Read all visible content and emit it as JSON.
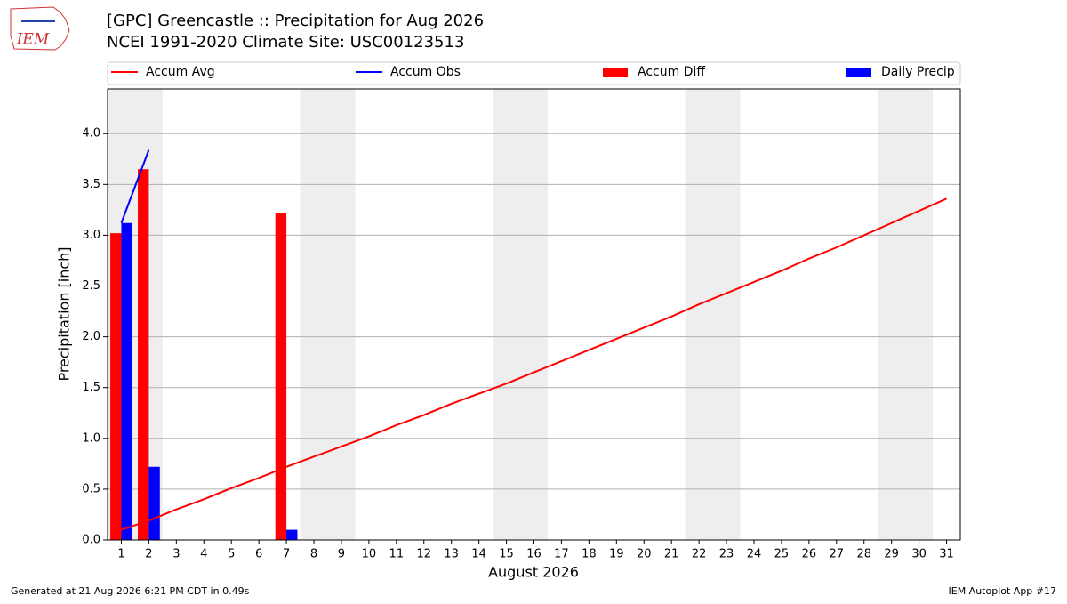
{
  "logo_text": "IEM",
  "footer_left": "Generated at 21 Aug 2026 6:21 PM CDT in 0.49s",
  "footer_right": "IEM Autoplot App #17",
  "chart_data": {
    "type": "bar",
    "title": "[GPC] Greencastle :: Precipitation for Aug 2026",
    "subtitle": "NCEI 1991-2020 Climate Site: USC00123513",
    "x_label": "August 2026",
    "y_label": "Precipitation [inch]",
    "x": [
      1,
      2,
      3,
      4,
      5,
      6,
      7,
      8,
      9,
      10,
      11,
      12,
      13,
      14,
      15,
      16,
      17,
      18,
      19,
      20,
      21,
      22,
      23,
      24,
      25,
      26,
      27,
      28,
      29,
      30,
      31
    ],
    "xlim": [
      0.5,
      31.5
    ],
    "xticks": [
      1,
      2,
      3,
      4,
      5,
      6,
      7,
      8,
      9,
      10,
      11,
      12,
      13,
      14,
      15,
      16,
      17,
      18,
      19,
      20,
      21,
      22,
      23,
      24,
      25,
      26,
      27,
      28,
      29,
      30,
      31
    ],
    "ylim": [
      0,
      4.44
    ],
    "yticks": [
      {
        "value": 0,
        "label": "0.0"
      },
      {
        "value": 0.5,
        "label": "0.5"
      },
      {
        "value": 1,
        "label": "1.0"
      },
      {
        "value": 1.5,
        "label": "1.5"
      },
      {
        "value": 2,
        "label": "2.0"
      },
      {
        "value": 2.5,
        "label": "2.5"
      },
      {
        "value": 3,
        "label": "3.0"
      },
      {
        "value": 3.5,
        "label": "3.5"
      },
      {
        "value": 4,
        "label": "4.0"
      }
    ],
    "grid": true,
    "shaded_spans": [
      [
        0.5,
        2.5
      ],
      [
        7.5,
        9.5
      ],
      [
        14.5,
        16.5
      ],
      [
        21.5,
        23.5
      ],
      [
        28.5,
        30.5
      ]
    ],
    "shade_color": "#eeeeee",
    "series": [
      {
        "name": "Accum Avg",
        "type": "line",
        "color": "#ff0000",
        "values": [
          0.1,
          0.19,
          0.3,
          0.4,
          0.51,
          0.61,
          0.72,
          0.82,
          0.92,
          1.02,
          1.13,
          1.23,
          1.34,
          1.44,
          1.54,
          1.65,
          1.76,
          1.87,
          1.98,
          2.09,
          2.2,
          2.32,
          2.43,
          2.54,
          2.65,
          2.77,
          2.88,
          3.0,
          3.12,
          3.24,
          3.36
        ]
      },
      {
        "name": "Accum Obs",
        "type": "line",
        "color": "#0000ff",
        "values": [
          3.12,
          3.84,
          null,
          null,
          null,
          null,
          null,
          null,
          null,
          null,
          null,
          null,
          null,
          null,
          null,
          null,
          null,
          null,
          null,
          null,
          null,
          null,
          null,
          null,
          null,
          null,
          null,
          null,
          null,
          null,
          null
        ]
      },
      {
        "name": "Accum Diff",
        "type": "bar",
        "color": "#ff0000",
        "offset": -0.2,
        "values": [
          3.02,
          3.65,
          null,
          null,
          null,
          null,
          3.22,
          null,
          null,
          null,
          null,
          null,
          null,
          null,
          null,
          null,
          null,
          null,
          null,
          null,
          null,
          null,
          null,
          null,
          null,
          null,
          null,
          null,
          null,
          null,
          null
        ]
      },
      {
        "name": "Daily Precip",
        "type": "bar",
        "color": "#0000ff",
        "offset": 0.2,
        "values": [
          3.12,
          0.72,
          null,
          null,
          null,
          null,
          0.1,
          null,
          null,
          null,
          null,
          null,
          null,
          null,
          null,
          null,
          null,
          null,
          null,
          null,
          null,
          null,
          null,
          null,
          null,
          null,
          null,
          null,
          null,
          null,
          null
        ]
      }
    ]
  }
}
